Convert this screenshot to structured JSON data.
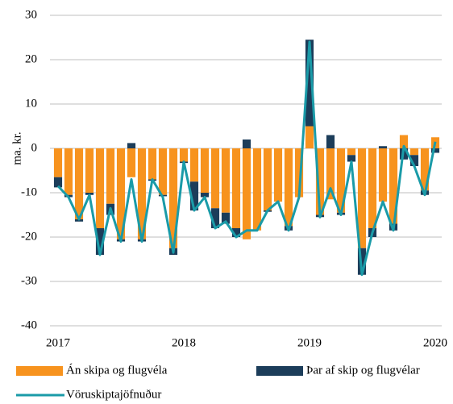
{
  "chart_data": {
    "type": "bar_line",
    "y_label": "ma. kr.",
    "x": [
      2017,
      2017.0833,
      2017.1667,
      2017.25,
      2017.3333,
      2017.4167,
      2017.5,
      2017.5833,
      2017.6667,
      2017.75,
      2017.8333,
      2017.9167,
      2018,
      2018.0833,
      2018.1667,
      2018.25,
      2018.3333,
      2018.4167,
      2018.5,
      2018.5833,
      2018.6667,
      2018.75,
      2018.8333,
      2018.9167,
      2019,
      2019.0833,
      2019.1667,
      2019.25,
      2019.3333,
      2019.4167,
      2019.5,
      2019.5833,
      2019.6667,
      2019.75,
      2019.8333,
      2019.9167,
      2020
    ],
    "series": [
      {
        "name": "Án skipa og flugvéla",
        "kind": "bar",
        "color": "#f7931e",
        "values": [
          -6.5,
          -10.5,
          -16,
          -10,
          -18,
          -12.5,
          -20.5,
          -6.5,
          -20.5,
          -7,
          -10.5,
          -22.5,
          -3,
          -7.5,
          -10,
          -13.5,
          -14.5,
          -18,
          -20.5,
          -18.5,
          -14,
          -12,
          -17.5,
          -11,
          5,
          -15,
          -11.5,
          -14.5,
          -1.5,
          -22.5,
          -18,
          -12,
          -17,
          3,
          -1.5,
          -9.5,
          2.5
        ]
      },
      {
        "name": "Þar af skip og flugvélar",
        "kind": "bar",
        "color": "#1c3d5a",
        "values": [
          -2.3,
          -0.5,
          -0.5,
          -0.5,
          -6,
          -2.5,
          -0.5,
          1.2,
          -0.5,
          -0.3,
          -0.3,
          -1.5,
          -0.3,
          -6.5,
          -1,
          -4.5,
          -2.5,
          -2,
          2,
          0,
          -0.3,
          0,
          -1,
          0,
          19.5,
          -0.5,
          3,
          -0.5,
          -1.5,
          -6,
          -2,
          0.5,
          -1.5,
          -2.5,
          -2.5,
          -1,
          -1
        ]
      },
      {
        "name": "Vöruskiptajöfnuður",
        "kind": "line",
        "color": "#1a9ba8",
        "values": [
          -8.5,
          -11,
          -16,
          -10.5,
          -24,
          -13.5,
          -21,
          -7,
          -21,
          -7,
          -11,
          -23.5,
          -3,
          -14,
          -11,
          -18,
          -16.5,
          -20,
          -18.5,
          -18.5,
          -14,
          -12,
          -18.5,
          -11,
          24,
          -15.5,
          -9,
          -15,
          -3,
          -28.5,
          -19,
          -12,
          -18.5,
          0.5,
          -4,
          -10.5,
          1.5
        ]
      }
    ],
    "xlim": [
      2017,
      2020
    ],
    "xticks": [
      2017,
      2018,
      2019,
      2020
    ],
    "ylim": [
      -40,
      30
    ],
    "yticks": [
      -40,
      -30,
      -20,
      -10,
      0,
      10,
      20,
      30
    ],
    "grid": true,
    "legend": "bottom"
  }
}
